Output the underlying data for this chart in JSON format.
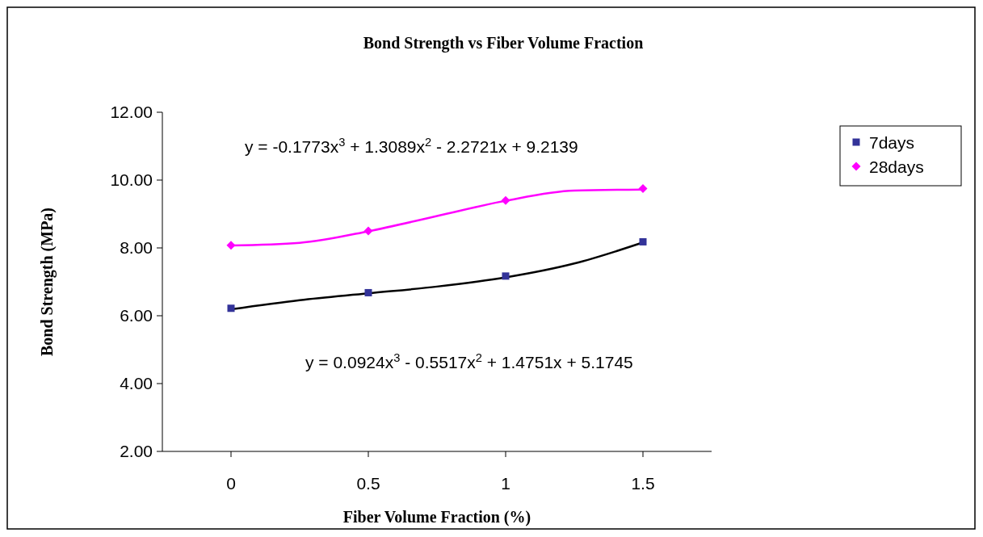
{
  "chart_data": {
    "type": "scatter",
    "title": "Bond Strength vs Fiber Volume Fraction",
    "xlabel": "Fiber Volume Fraction (%)",
    "ylabel": "Bond Strength (MPa)",
    "xlim": [
      -0.25,
      1.75
    ],
    "xticks": [
      0,
      0.5,
      1,
      1.5
    ],
    "ylim": [
      2,
      12
    ],
    "yticks": [
      {
        "value": 2,
        "label": "2.00"
      },
      {
        "value": 4,
        "label": "4.00"
      },
      {
        "value": 6,
        "label": "6.00"
      },
      {
        "value": 8,
        "label": "8.00"
      },
      {
        "value": 10,
        "label": "10.00"
      },
      {
        "value": 12,
        "label": "12.00"
      }
    ],
    "grid": false,
    "legend": "right",
    "annotations": [
      "y = -0.1773x$^{3}$ + 1.3089x$^{2}$ - 2.2721x + 9.2139",
      "y = 0.0924x$^{3}$ - 0.5517x$^{2}$ + 1.4751x + 5.1745"
    ],
    "series": [
      {
        "type": "line",
        "color": "#000000",
        "marker": "none",
        "x": [
          0,
          0.25,
          0.5,
          0.75,
          1,
          1.25,
          1.5
        ],
        "values": [
          6.19,
          6.46,
          6.66,
          6.86,
          7.13,
          7.54,
          8.16
        ]
      },
      {
        "type": "line",
        "color": "#ff00ff",
        "marker": "none",
        "x": [
          0,
          0.25,
          0.5,
          0.75,
          1,
          1.25,
          1.5
        ],
        "values": [
          8.07,
          8.15,
          8.49,
          8.94,
          9.39,
          9.69,
          9.72
        ]
      },
      {
        "type": "scatter",
        "name": "7days",
        "color": "#333399",
        "marker": "square",
        "x": [
          0,
          0.5,
          1,
          1.5
        ],
        "values": [
          6.22,
          6.68,
          7.17,
          8.18
        ]
      },
      {
        "type": "scatter",
        "name": "28days",
        "color": "#ff00ff",
        "marker": "diamond",
        "x": [
          0,
          0.5,
          1,
          1.5
        ],
        "values": [
          8.08,
          8.5,
          9.4,
          9.75
        ]
      }
    ]
  }
}
